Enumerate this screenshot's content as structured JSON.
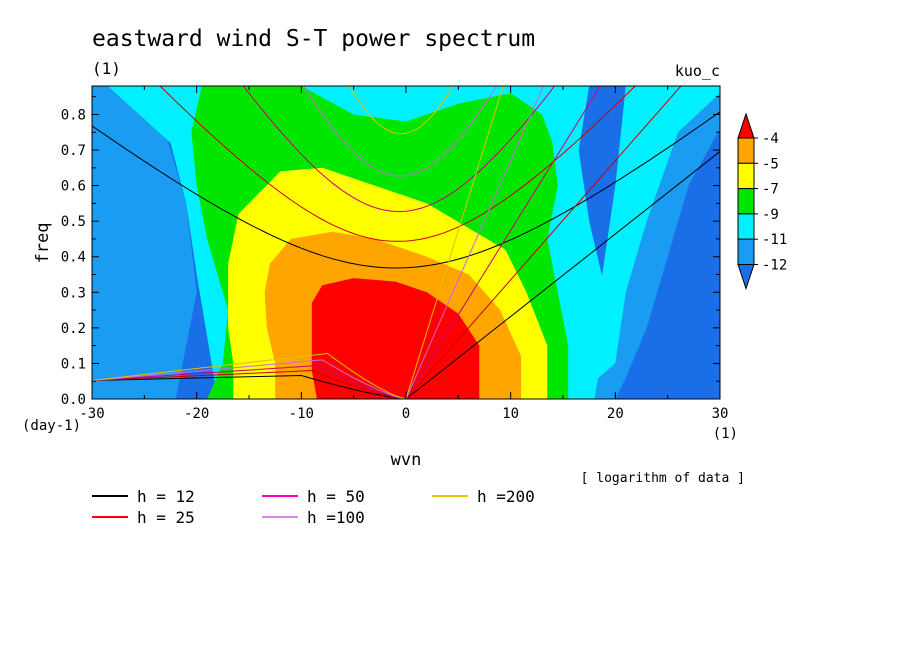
{
  "chart_data": {
    "type": "heatmap",
    "title": "eastward wind S-T power spectrum",
    "subtitle_left": "(1)",
    "subtitle_right": "kuo_c",
    "xlabel": "wvn",
    "ylabel": "freq",
    "x_unit": "(1)",
    "y_unit": "(day-1)",
    "note": "[ logarithm of data ]",
    "xlim": [
      -30,
      30
    ],
    "ylim": [
      0,
      0.88
    ],
    "xticks": [
      -30,
      -20,
      -10,
      0,
      10,
      20,
      30
    ],
    "yticks": [
      0.0,
      0.1,
      0.2,
      0.3,
      0.4,
      0.5,
      0.6,
      0.7,
      0.8
    ],
    "colorbar": {
      "levels": [
        -12,
        -11,
        -9,
        -7,
        -5,
        -4
      ],
      "labels": [
        "-4",
        "-5",
        "-7",
        "-9",
        "-11",
        "-12"
      ],
      "colors": {
        "below": "#1a6ee8",
        "b1": "#1a9cf2",
        "b2": "#00f0ff",
        "b3": "#00e600",
        "b4": "#ffff00",
        "b5": "#ffa500",
        "above": "#ff0000"
      }
    },
    "contour_regions": [
      {
        "level": "below -12",
        "color": "#1a6ee8",
        "extent": "|wvn| > ~25"
      },
      {
        "level": "-12 to -11",
        "color": "#1a9cf2",
        "extent": "~20 < |wvn| < ~27"
      },
      {
        "level": "-11 to -9",
        "color": "#00f0ff",
        "extent": "~16 < |wvn| < ~22"
      },
      {
        "level": "-9 to -7",
        "color": "#00e600",
        "x_range": [
          -20,
          15
        ],
        "y_max": 0.86
      },
      {
        "level": "-7 to -5",
        "color": "#ffff00",
        "x_range": [
          -17,
          13
        ],
        "y_max": 0.65
      },
      {
        "level": "-5 to -4",
        "color": "#ffa500",
        "x_range": [
          -13,
          11
        ],
        "y_max": 0.47
      },
      {
        "level": "above -4",
        "color": "#ff0000",
        "x_range": [
          -9,
          7
        ],
        "y_max": 0.34
      }
    ],
    "series": [
      {
        "name": "h = 12",
        "color": "#000000"
      },
      {
        "name": "h = 25",
        "color": "#ff0000"
      },
      {
        "name": "h = 50",
        "color": "#ff00cc"
      },
      {
        "name": "h =100",
        "color": "#dd88ee"
      },
      {
        "name": "h =200",
        "color": "#e8c800"
      }
    ],
    "dispersion": {
      "h_values": [
        12,
        25,
        50,
        100,
        200
      ],
      "line_colors": [
        "#000000",
        "#cc0000",
        "#cc0077",
        "#cc66dd",
        "#e0c000"
      ],
      "kelvin_slopes": [
        0.0232,
        0.0335,
        0.0474,
        0.067,
        0.0948
      ],
      "ig_min_freq": [
        0.369,
        0.444,
        0.528,
        0.628,
        0.747
      ],
      "rossby_scale": [
        0.0535,
        0.0535,
        0.0535,
        0.0535,
        0.0535
      ]
    }
  }
}
